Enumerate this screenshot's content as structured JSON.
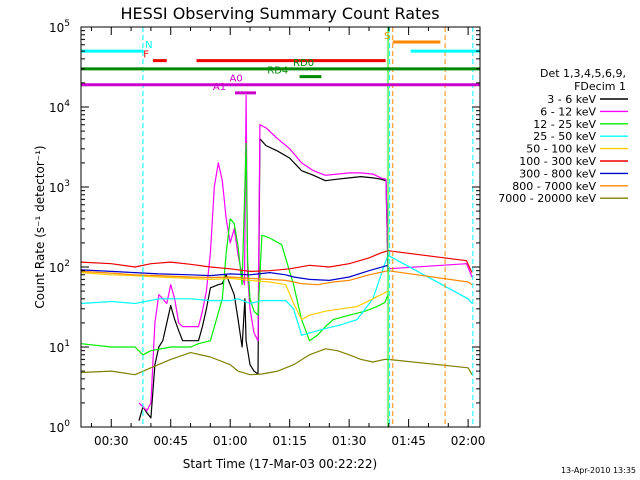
{
  "chart_data": {
    "type": "line",
    "title": "HESSI Observing Summary Count Rates",
    "xlabel": "Start Time (17-Mar-03 00:22:22)",
    "ylabel": "Count Rate (s⁻¹ detector⁻¹)",
    "x_unit": "minutes after 00:00 UT",
    "xlim": [
      22.37,
      123
    ],
    "ylim": [
      1,
      100000
    ],
    "yscale": "log",
    "x_ticks": [
      {
        "value": 30,
        "label": "00:30"
      },
      {
        "value": 45,
        "label": "00:45"
      },
      {
        "value": 60,
        "label": "01:00"
      },
      {
        "value": 75,
        "label": "01:15"
      },
      {
        "value": 90,
        "label": "01:30"
      },
      {
        "value": 105,
        "label": "01:45"
      },
      {
        "value": 120,
        "label": "02:00"
      }
    ],
    "y_ticks": [
      {
        "value": 1,
        "base": "10",
        "exp": "0"
      },
      {
        "value": 10,
        "base": "10",
        "exp": "1"
      },
      {
        "value": 100,
        "base": "10",
        "exp": "2"
      },
      {
        "value": 1000,
        "base": "10",
        "exp": "3"
      },
      {
        "value": 10000,
        "base": "10",
        "exp": "4"
      },
      {
        "value": 100000,
        "base": "10",
        "exp": "5"
      }
    ],
    "legend": {
      "title_lines": [
        "Det 1,3,4,5,6,9,",
        "FDecim 1"
      ],
      "placement": "right"
    },
    "series": [
      {
        "name": "3 - 6 keV",
        "color": "#000000",
        "points": [
          [
            37,
            1.2
          ],
          [
            38,
            1.8
          ],
          [
            39,
            1.5
          ],
          [
            40,
            1.3
          ],
          [
            41,
            6
          ],
          [
            42,
            10
          ],
          [
            43,
            12
          ],
          [
            44,
            20
          ],
          [
            45,
            33
          ],
          [
            46,
            22
          ],
          [
            47,
            16
          ],
          [
            48,
            12
          ],
          [
            52,
            12
          ],
          [
            53,
            18
          ],
          [
            54,
            30
          ],
          [
            55,
            55
          ],
          [
            57,
            60
          ],
          [
            58,
            62
          ],
          [
            59,
            80
          ],
          [
            60,
            60
          ],
          [
            61,
            45
          ],
          [
            62,
            22
          ],
          [
            63,
            10
          ],
          [
            63.7,
            40
          ],
          [
            64,
            12
          ],
          [
            65,
            6
          ],
          [
            66,
            5
          ],
          [
            67,
            4.6
          ],
          [
            67.5,
            4000
          ],
          [
            69,
            3300
          ],
          [
            72,
            2800
          ],
          [
            75,
            2300
          ],
          [
            78,
            1600
          ],
          [
            81,
            1400
          ],
          [
            84,
            1200
          ],
          [
            87,
            1250
          ],
          [
            90,
            1300
          ],
          [
            93,
            1350
          ],
          [
            96,
            1300
          ],
          [
            98,
            1250
          ],
          [
            99.3,
            1200
          ],
          [
            99.8,
            90
          ]
        ]
      },
      {
        "name": "6 - 12 keV",
        "color": "#ff00ff",
        "points": [
          [
            37,
            2
          ],
          [
            39,
            1.6
          ],
          [
            40,
            2
          ],
          [
            41,
            20
          ],
          [
            42,
            45
          ],
          [
            43,
            40
          ],
          [
            44,
            35
          ],
          [
            45,
            60
          ],
          [
            46,
            40
          ],
          [
            47,
            20
          ],
          [
            48,
            18
          ],
          [
            52,
            18
          ],
          [
            53,
            28
          ],
          [
            54,
            50
          ],
          [
            55,
            150
          ],
          [
            56,
            1000
          ],
          [
            57,
            2000
          ],
          [
            58,
            1200
          ],
          [
            59,
            400
          ],
          [
            60,
            200
          ],
          [
            61,
            300
          ],
          [
            62,
            140
          ],
          [
            63,
            80
          ],
          [
            63.6,
            60
          ],
          [
            64,
            14000
          ],
          [
            64.4,
            80
          ],
          [
            65,
            30
          ],
          [
            66,
            15
          ],
          [
            67,
            12
          ],
          [
            67.5,
            6000
          ],
          [
            69,
            5500
          ],
          [
            72,
            4000
          ],
          [
            75,
            3000
          ],
          [
            78,
            2000
          ],
          [
            81,
            1600
          ],
          [
            84,
            1400
          ],
          [
            87,
            1450
          ],
          [
            90,
            1500
          ],
          [
            93,
            1500
          ],
          [
            96,
            1450
          ],
          [
            98,
            1300
          ],
          [
            99.3,
            1250
          ],
          [
            99.8,
            95
          ],
          [
            119.6,
            110
          ],
          [
            121,
            75
          ]
        ]
      },
      {
        "name": "12 - 25 keV",
        "color": "#00ee00",
        "points": [
          [
            22.4,
            11
          ],
          [
            30,
            10
          ],
          [
            36,
            10
          ],
          [
            38,
            8
          ],
          [
            40,
            9
          ],
          [
            45,
            10
          ],
          [
            50,
            10
          ],
          [
            52,
            11
          ],
          [
            55,
            12
          ],
          [
            58,
            40
          ],
          [
            59,
            150
          ],
          [
            60,
            400
          ],
          [
            61,
            350
          ],
          [
            62,
            180
          ],
          [
            63,
            60
          ],
          [
            64,
            3500
          ],
          [
            64.4,
            120
          ],
          [
            65,
            40
          ],
          [
            66,
            28
          ],
          [
            67,
            25
          ],
          [
            68,
            250
          ],
          [
            70,
            230
          ],
          [
            73,
            190
          ],
          [
            76,
            60
          ],
          [
            78,
            22
          ],
          [
            80,
            12
          ],
          [
            82,
            14
          ],
          [
            84,
            18
          ],
          [
            86,
            22
          ],
          [
            90,
            25
          ],
          [
            94,
            28
          ],
          [
            97,
            32
          ],
          [
            99,
            36
          ],
          [
            99.8,
            45
          ]
        ]
      },
      {
        "name": "25 - 50 keV",
        "color": "#00ffff",
        "points": [
          [
            22.4,
            35
          ],
          [
            30,
            37
          ],
          [
            36,
            35
          ],
          [
            42,
            40
          ],
          [
            45,
            40
          ],
          [
            50,
            40
          ],
          [
            55,
            38
          ],
          [
            60,
            38
          ],
          [
            62,
            40
          ],
          [
            65,
            35
          ],
          [
            68,
            38
          ],
          [
            74,
            38
          ],
          [
            76,
            30
          ],
          [
            78,
            14
          ],
          [
            80,
            15
          ],
          [
            84,
            17
          ],
          [
            88,
            19
          ],
          [
            92,
            22
          ],
          [
            96,
            40
          ],
          [
            99,
            110
          ],
          [
            99.8,
            140
          ],
          [
            120,
            40
          ],
          [
            121,
            35
          ]
        ]
      },
      {
        "name": "50 - 100 keV",
        "color": "#ffcc00",
        "points": [
          [
            22.4,
            85
          ],
          [
            30,
            80
          ],
          [
            36,
            78
          ],
          [
            42,
            75
          ],
          [
            50,
            72
          ],
          [
            55,
            70
          ],
          [
            60,
            72
          ],
          [
            65,
            68
          ],
          [
            70,
            65
          ],
          [
            74,
            60
          ],
          [
            76,
            35
          ],
          [
            78,
            22
          ],
          [
            80,
            25
          ],
          [
            84,
            28
          ],
          [
            88,
            30
          ],
          [
            92,
            32
          ],
          [
            96,
            40
          ],
          [
            99.8,
            50
          ]
        ]
      },
      {
        "name": "100 - 300 keV",
        "color": "#ee0000",
        "points": [
          [
            22.4,
            115
          ],
          [
            30,
            110
          ],
          [
            36,
            100
          ],
          [
            40,
            110
          ],
          [
            45,
            115
          ],
          [
            50,
            108
          ],
          [
            55,
            100
          ],
          [
            60,
            95
          ],
          [
            65,
            88
          ],
          [
            70,
            90
          ],
          [
            75,
            95
          ],
          [
            80,
            105
          ],
          [
            85,
            100
          ],
          [
            90,
            110
          ],
          [
            95,
            130
          ],
          [
            98,
            150
          ],
          [
            99.8,
            160
          ],
          [
            119.6,
            120
          ],
          [
            120.5,
            95
          ],
          [
            121,
            85
          ]
        ]
      },
      {
        "name": "300 - 800 keV",
        "color": "#0000cc",
        "points": [
          [
            22.4,
            92
          ],
          [
            30,
            88
          ],
          [
            36,
            85
          ],
          [
            42,
            82
          ],
          [
            50,
            80
          ],
          [
            55,
            78
          ],
          [
            60,
            82
          ],
          [
            65,
            80
          ],
          [
            70,
            85
          ],
          [
            74,
            80
          ],
          [
            76,
            75
          ],
          [
            80,
            70
          ],
          [
            85,
            68
          ],
          [
            90,
            75
          ],
          [
            95,
            90
          ],
          [
            99.8,
            105
          ]
        ]
      },
      {
        "name": "800 - 7000 keV",
        "color": "#ff8800",
        "points": [
          [
            22.4,
            88
          ],
          [
            30,
            84
          ],
          [
            36,
            80
          ],
          [
            42,
            78
          ],
          [
            50,
            75
          ],
          [
            55,
            74
          ],
          [
            60,
            75
          ],
          [
            65,
            72
          ],
          [
            70,
            70
          ],
          [
            74,
            68
          ],
          [
            78,
            62
          ],
          [
            82,
            60
          ],
          [
            86,
            65
          ],
          [
            90,
            68
          ],
          [
            95,
            80
          ],
          [
            99.8,
            90
          ],
          [
            120,
            65
          ],
          [
            121,
            60
          ]
        ]
      },
      {
        "name": "7000 - 20000 keV",
        "color": "#808000",
        "points": [
          [
            22.4,
            4.8
          ],
          [
            30,
            5
          ],
          [
            36,
            4.5
          ],
          [
            40,
            5.5
          ],
          [
            45,
            7
          ],
          [
            50,
            8.5
          ],
          [
            55,
            7.5
          ],
          [
            60,
            6
          ],
          [
            62,
            5
          ],
          [
            65,
            4.5
          ],
          [
            68,
            4.6
          ],
          [
            72,
            5
          ],
          [
            76,
            6
          ],
          [
            80,
            8
          ],
          [
            84,
            9.5
          ],
          [
            87,
            9
          ],
          [
            90,
            8
          ],
          [
            93,
            7
          ],
          [
            96,
            6.5
          ],
          [
            99,
            7
          ],
          [
            99.8,
            7
          ],
          [
            120,
            5.5
          ],
          [
            121,
            4.5
          ]
        ]
      }
    ],
    "attenuator_lines": [
      {
        "color": "#00ffff",
        "x": [
          38,
          100.2,
          121.2
        ],
        "style": "dashed"
      },
      {
        "color": "#00ee00",
        "x": [
          99.8
        ],
        "style": "solid"
      },
      {
        "color": "#ff8800",
        "x": [
          101,
          114.2
        ],
        "style": "dashed"
      }
    ],
    "flag_bars": [
      {
        "label": "N",
        "color": "#00ffff",
        "y": 50000,
        "segments": [
          [
            22.4,
            38.2
          ],
          [
            105.5,
            123
          ]
        ],
        "label_at": 39.5
      },
      {
        "label": "S",
        "color": "#ff8800",
        "y": 65000,
        "segments": [
          [
            101,
            113
          ]
        ],
        "label_at": 99.6
      },
      {
        "label": "F",
        "color": "#ee0000",
        "y": 38000,
        "segments": [
          [
            40.5,
            44
          ],
          [
            51.5,
            99.2
          ]
        ],
        "label_at": 38.8
      },
      {
        "label": "RD0",
        "color": "#008800",
        "y": 30000,
        "segments": [
          [
            22.4,
            123
          ]
        ],
        "label_at": 78.5
      },
      {
        "label": "RD4",
        "color": "#008800",
        "y": 24000,
        "segments": [
          [
            77.5,
            83
          ]
        ],
        "label_at": 72
      },
      {
        "label": "A0",
        "color": "#cc00cc",
        "y": 19000,
        "segments": [
          [
            22.4,
            123
          ]
        ],
        "label_at": 61.5
      },
      {
        "label": "A1",
        "color": "#cc00cc",
        "y": 15000,
        "segments": [
          [
            61.2,
            66.5
          ]
        ],
        "label_at": 57.3
      }
    ]
  },
  "footer": {
    "timestamp": "13-Apr-2010 13:35"
  }
}
